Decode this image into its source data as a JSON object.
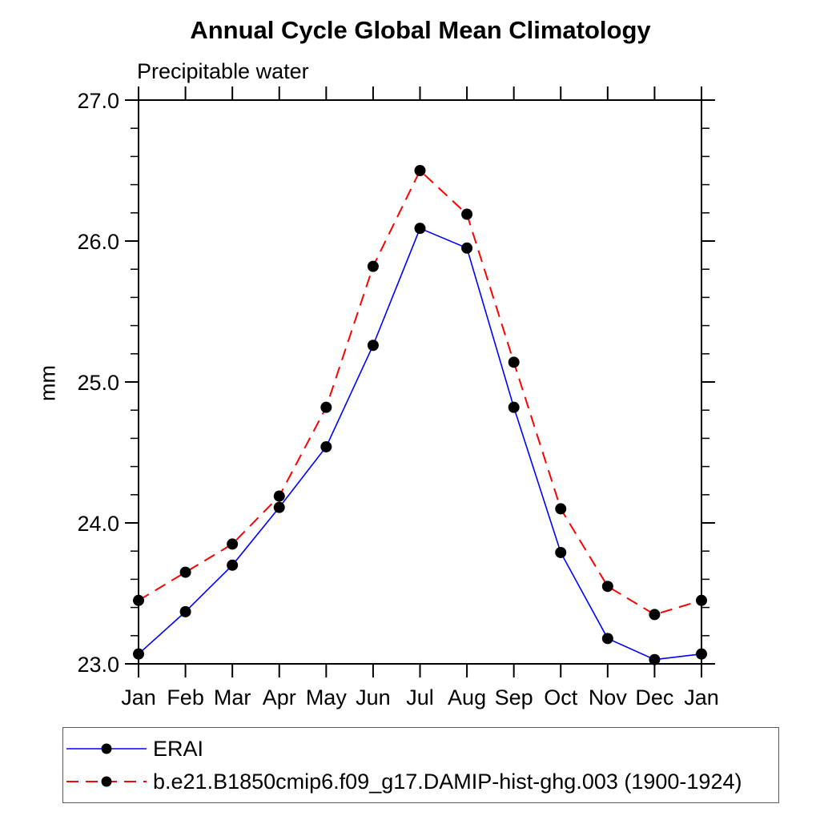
{
  "chart_data": {
    "type": "line",
    "title": "Annual Cycle Global Mean Climatology",
    "subtitle": "Precipitable water",
    "xlabel": "",
    "ylabel": "mm",
    "ylim": [
      23.0,
      27.0
    ],
    "ytick_major_step": 1.0,
    "ytick_minor_step": 0.2,
    "ytick_labels": [
      "23.0",
      "24.0",
      "25.0",
      "26.0",
      "27.0"
    ],
    "categories": [
      "Jan",
      "Feb",
      "Mar",
      "Apr",
      "May",
      "Jun",
      "Jul",
      "Aug",
      "Sep",
      "Oct",
      "Nov",
      "Dec",
      "Jan"
    ],
    "series": [
      {
        "name": "ERAI",
        "color": "#0000ff",
        "line_style": "solid",
        "marker": "filled-circle",
        "marker_color": "#000000",
        "values": [
          23.07,
          23.37,
          23.7,
          24.11,
          24.54,
          25.26,
          26.09,
          25.95,
          24.82,
          23.79,
          23.18,
          23.03,
          23.07
        ]
      },
      {
        "name": "b.e21.B1850cmip6.f09_g17.DAMIP-hist-ghg.003 (1900-1924)",
        "color": "#ff0000",
        "line_style": "dashed",
        "marker": "filled-circle",
        "marker_color": "#000000",
        "values": [
          23.45,
          23.65,
          23.85,
          24.19,
          24.82,
          25.82,
          26.5,
          26.19,
          25.14,
          24.1,
          23.55,
          23.35,
          23.45
        ]
      }
    ],
    "grid": false,
    "legend_position": "bottom",
    "axis_color": "#000000"
  }
}
